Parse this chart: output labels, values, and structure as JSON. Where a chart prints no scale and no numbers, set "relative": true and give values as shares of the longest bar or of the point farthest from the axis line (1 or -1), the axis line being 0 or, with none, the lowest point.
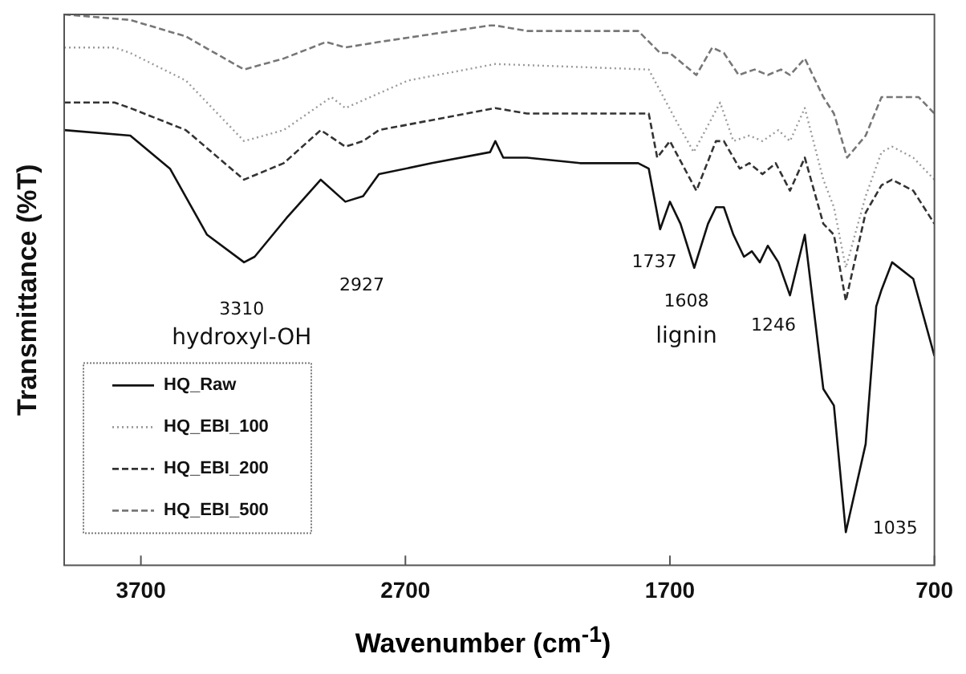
{
  "chart_data": {
    "type": "line",
    "xlabel": "Wavenumber (cm$^{-1}$)",
    "ylabel": "Transmittance (%T)",
    "relative": true,
    "xlim": [
      3990,
      700
    ],
    "xticks": [
      3700,
      2700,
      1700,
      700
    ],
    "tick_labels": "x",
    "grid": false,
    "legend": "bottom left",
    "marker": "none",
    "series": [
      {
        "name": "HQ_Raw",
        "color": "#111111",
        "line_style": "solid",
        "x": [
          3990,
          3740,
          3590,
          3450,
          3310,
          3270,
          3150,
          3020,
          2927,
          2860,
          2800,
          2600,
          2380,
          2360,
          2330,
          2240,
          2040,
          1820,
          1780,
          1737,
          1700,
          1660,
          1608,
          1556,
          1526,
          1496,
          1460,
          1420,
          1390,
          1360,
          1330,
          1290,
          1246,
          1190,
          1160,
          1120,
          1080,
          1035,
          960,
          920,
          900,
          860,
          780,
          700
        ],
        "values": [
          0.79,
          0.78,
          0.72,
          0.6,
          0.55,
          0.56,
          0.63,
          0.7,
          0.66,
          0.67,
          0.71,
          0.73,
          0.75,
          0.77,
          0.74,
          0.74,
          0.73,
          0.73,
          0.72,
          0.61,
          0.66,
          0.62,
          0.54,
          0.62,
          0.65,
          0.65,
          0.6,
          0.56,
          0.57,
          0.55,
          0.58,
          0.55,
          0.49,
          0.6,
          0.48,
          0.32,
          0.29,
          0.06,
          0.22,
          0.47,
          0.5,
          0.55,
          0.52,
          0.38
        ]
      },
      {
        "name": "HQ_EBI_100",
        "color": "#9a9a9a",
        "line_style": "dotted",
        "x": [
          3990,
          3800,
          3740,
          3530,
          3310,
          3160,
          2980,
          2927,
          2690,
          2360,
          1780,
          1680,
          1610,
          1510,
          1460,
          1400,
          1350,
          1290,
          1246,
          1190,
          1120,
          1080,
          1035,
          960,
          900,
          860,
          780,
          700
        ],
        "values": [
          0.94,
          0.94,
          0.93,
          0.88,
          0.77,
          0.79,
          0.85,
          0.83,
          0.88,
          0.91,
          0.9,
          0.81,
          0.75,
          0.84,
          0.77,
          0.78,
          0.77,
          0.79,
          0.77,
          0.83,
          0.7,
          0.65,
          0.54,
          0.67,
          0.75,
          0.76,
          0.74,
          0.7
        ]
      },
      {
        "name": "HQ_EBI_200",
        "color": "#333333",
        "line_style": "dashed",
        "x": [
          3990,
          3800,
          3740,
          3530,
          3310,
          3160,
          3020,
          2927,
          2860,
          2800,
          2360,
          2240,
          1780,
          1748,
          1700,
          1600,
          1526,
          1496,
          1436,
          1400,
          1350,
          1300,
          1246,
          1190,
          1120,
          1080,
          1035,
          960,
          900,
          860,
          780,
          700
        ],
        "values": [
          0.84,
          0.84,
          0.83,
          0.79,
          0.7,
          0.73,
          0.79,
          0.76,
          0.77,
          0.79,
          0.83,
          0.82,
          0.82,
          0.74,
          0.77,
          0.68,
          0.77,
          0.77,
          0.72,
          0.73,
          0.71,
          0.73,
          0.68,
          0.74,
          0.62,
          0.6,
          0.48,
          0.64,
          0.69,
          0.7,
          0.68,
          0.62
        ]
      },
      {
        "name": "HQ_EBI_500",
        "color": "#777777",
        "line_style": "dashed",
        "x": [
          3990,
          3740,
          3530,
          3310,
          3160,
          3000,
          2927,
          2800,
          2380,
          2360,
          2240,
          1820,
          1737,
          1700,
          1600,
          1540,
          1496,
          1440,
          1380,
          1330,
          1280,
          1246,
          1190,
          1120,
          1080,
          1030,
          960,
          900,
          840,
          760,
          700
        ],
        "values": [
          1.0,
          0.99,
          0.96,
          0.9,
          0.92,
          0.95,
          0.94,
          0.95,
          0.98,
          0.98,
          0.97,
          0.97,
          0.93,
          0.93,
          0.89,
          0.94,
          0.93,
          0.89,
          0.9,
          0.89,
          0.9,
          0.89,
          0.92,
          0.85,
          0.82,
          0.74,
          0.78,
          0.85,
          0.85,
          0.85,
          0.82
        ]
      }
    ],
    "annotations": [
      "3310",
      "hydroxyl-OH",
      "2927",
      "1737",
      "1608",
      "lignin",
      "1246",
      "1035"
    ]
  }
}
